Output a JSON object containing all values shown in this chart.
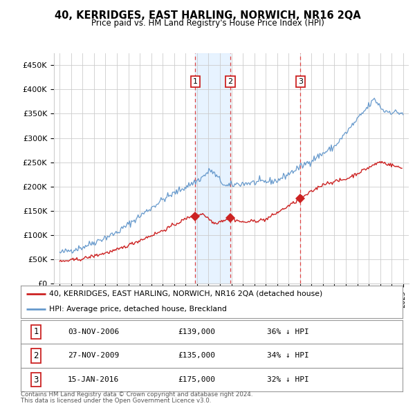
{
  "title": "40, KERRIDGES, EAST HARLING, NORWICH, NR16 2QA",
  "subtitle": "Price paid vs. HM Land Registry's House Price Index (HPI)",
  "legend_line1": "40, KERRIDGES, EAST HARLING, NORWICH, NR16 2QA (detached house)",
  "legend_line2": "HPI: Average price, detached house, Breckland",
  "footer1": "Contains HM Land Registry data © Crown copyright and database right 2024.",
  "footer2": "This data is licensed under the Open Government Licence v3.0.",
  "sales": [
    {
      "num": 1,
      "date": "03-NOV-2006",
      "date_x": 2006.84,
      "price": 139000,
      "label": "£139,000",
      "pct": "36% ↓ HPI"
    },
    {
      "num": 2,
      "date": "27-NOV-2009",
      "date_x": 2009.9,
      "price": 135000,
      "label": "£135,000",
      "pct": "34% ↓ HPI"
    },
    {
      "num": 3,
      "date": "15-JAN-2016",
      "date_x": 2016.04,
      "price": 175000,
      "label": "£175,000",
      "pct": "32% ↓ HPI"
    }
  ],
  "hpi_color": "#6699cc",
  "price_color": "#cc2222",
  "sale_marker_color": "#cc2222",
  "vline_color": "#dd4444",
  "box_color": "#cc2222",
  "shade_color": "#ddeeff",
  "ylim": [
    0,
    475000
  ],
  "yticks": [
    0,
    50000,
    100000,
    150000,
    200000,
    250000,
    300000,
    350000,
    400000,
    450000
  ],
  "ytick_labels": [
    "£0",
    "£50K",
    "£100K",
    "£150K",
    "£200K",
    "£250K",
    "£300K",
    "£350K",
    "£400K",
    "£450K"
  ],
  "xlim_start": 1994.5,
  "xlim_end": 2025.5,
  "background_color": "#ffffff",
  "grid_color": "#cccccc"
}
